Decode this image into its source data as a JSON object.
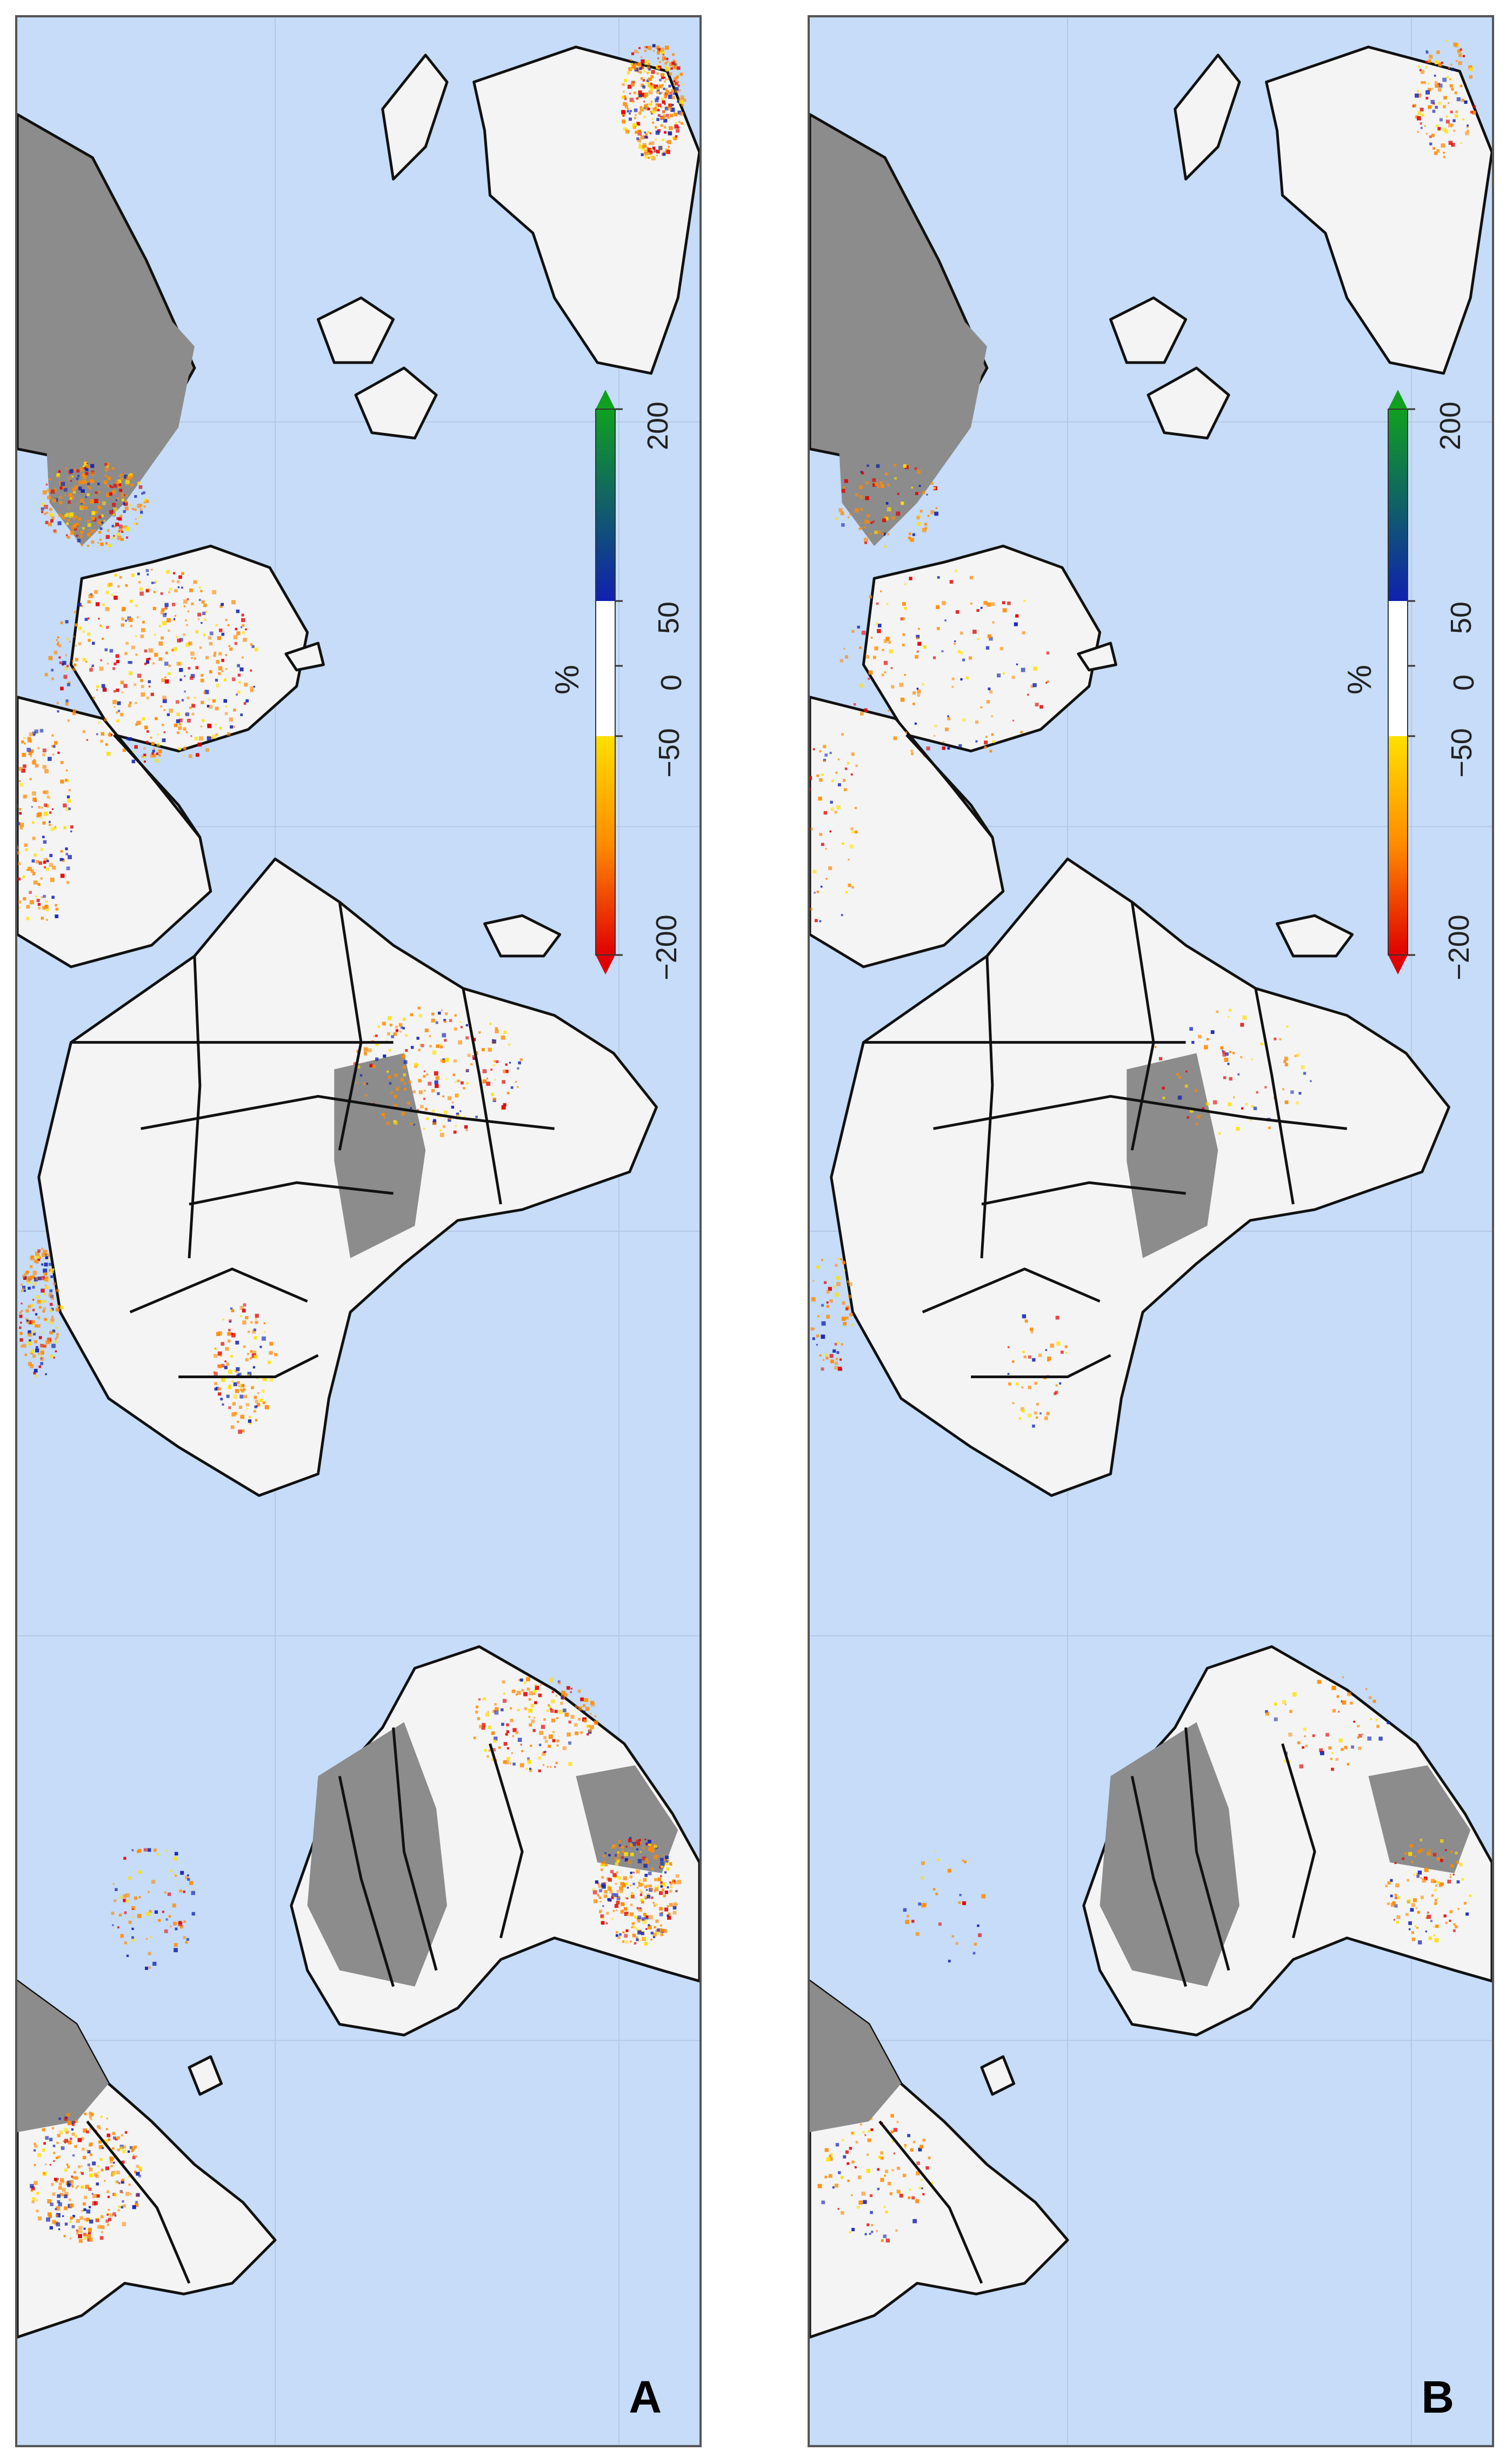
{
  "colors": {
    "ocean": "#c6dcf8",
    "land": "#f4f4f4",
    "land_nodata": "#8c8c8c",
    "border": "#111111",
    "grid": "#b4c8e4",
    "neg_high": "#e00000",
    "neg_mid": "#ff8a00",
    "neg_low": "#ffe000",
    "neutral": "#ffffff",
    "pos_low": "#1020b0",
    "pos_high": "#10a020"
  },
  "legend": {
    "unit": "%",
    "ticks": [
      "−200",
      "−50",
      "0",
      "50",
      "200"
    ],
    "tick_values": [
      -200,
      -50,
      0,
      50,
      200
    ]
  },
  "panels": [
    {
      "id": "A",
      "label": "A",
      "anomaly_density": "high"
    },
    {
      "id": "B",
      "label": "B",
      "anomaly_density": "low"
    }
  ]
}
